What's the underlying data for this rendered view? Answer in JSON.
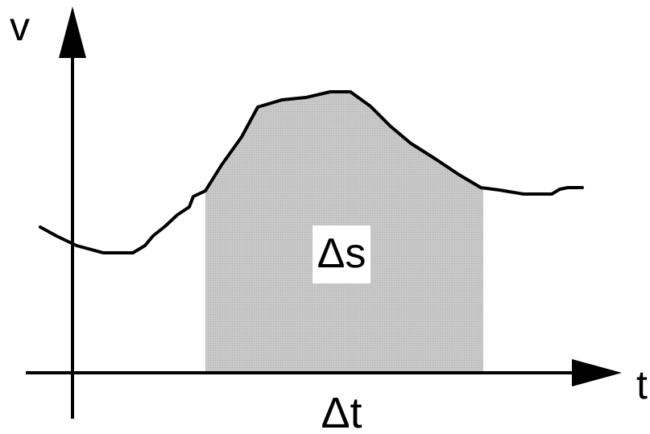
{
  "diagram": {
    "y_axis_label": "v",
    "x_axis_label": "t",
    "area_label": "Δs",
    "interval_label": "Δt",
    "colors": {
      "stroke": "#000000",
      "area_fill": "#c8c8c8",
      "label_background": "#ffffff",
      "background": "#ffffff"
    }
  }
}
